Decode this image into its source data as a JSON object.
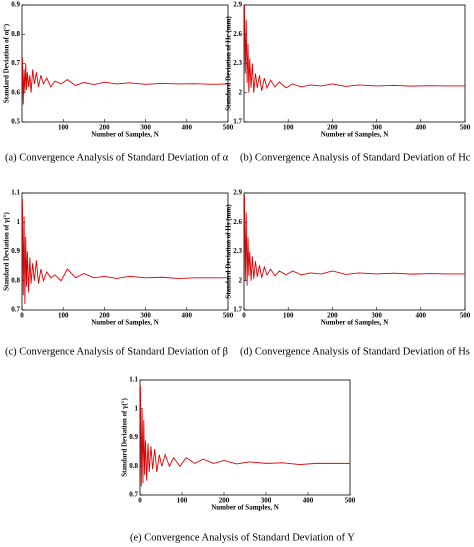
{
  "chart_data": [
    {
      "type": "line",
      "caption": "(a) Convergence Analysis of Standard Deviation of α",
      "xlabel": "Number of Samples, N",
      "ylabel": "Standard Deviation of α(°)",
      "xlim": [
        0,
        500
      ],
      "xticks": [
        100,
        200,
        300,
        400,
        500
      ],
      "ylim": [
        0.5,
        0.9
      ],
      "yticks": [
        0.5,
        0.6,
        0.7,
        0.8,
        0.9
      ],
      "x": [
        1,
        3,
        5,
        7,
        9,
        11,
        13,
        16,
        19,
        22,
        26,
        30,
        35,
        40,
        46,
        52,
        60,
        70,
        80,
        95,
        110,
        130,
        150,
        175,
        200,
        230,
        260,
        300,
        340,
        380,
        420,
        460,
        500
      ],
      "series": [
        {
          "name": "α",
          "color": "#e00000",
          "values": [
            0.72,
            0.56,
            0.68,
            0.6,
            0.7,
            0.61,
            0.67,
            0.62,
            0.66,
            0.6,
            0.68,
            0.63,
            0.67,
            0.62,
            0.66,
            0.63,
            0.65,
            0.62,
            0.64,
            0.63,
            0.645,
            0.625,
            0.635,
            0.628,
            0.636,
            0.63,
            0.634,
            0.629,
            0.632,
            0.63,
            0.631,
            0.629,
            0.63
          ]
        }
      ]
    },
    {
      "type": "line",
      "caption": "(b) Convergence Analysis of Standard Deviation of Hc",
      "xlabel": "Number of Samples, N",
      "ylabel": "Standard Deviation of Hc (mm)",
      "xlim": [
        0,
        500
      ],
      "xticks": [
        100,
        200,
        300,
        400,
        500
      ],
      "ylim": [
        1.7,
        2.9
      ],
      "yticks": [
        1.7,
        2.0,
        2.3,
        2.6,
        2.9
      ],
      "x": [
        1,
        3,
        5,
        7,
        9,
        11,
        13,
        16,
        19,
        22,
        26,
        30,
        35,
        40,
        46,
        52,
        60,
        70,
        80,
        95,
        110,
        130,
        150,
        175,
        200,
        230,
        260,
        300,
        340,
        380,
        420,
        460,
        500
      ],
      "series": [
        {
          "name": "Hc",
          "color": "#e00000",
          "values": [
            2.9,
            2.2,
            2.75,
            2.1,
            2.5,
            2.0,
            2.35,
            2.05,
            2.3,
            2.0,
            2.2,
            2.05,
            2.18,
            2.02,
            2.15,
            2.05,
            2.13,
            2.06,
            2.11,
            2.05,
            2.09,
            2.06,
            2.08,
            2.07,
            2.09,
            2.065,
            2.08,
            2.07,
            2.075,
            2.068,
            2.072,
            2.07,
            2.07
          ]
        }
      ]
    },
    {
      "type": "line",
      "caption": "(c) Convergence Analysis of Standard Deviation of β",
      "xlabel": "Number of Samples, N",
      "ylabel": "Standard Deviation of γ(°)",
      "xlim": [
        0,
        500
      ],
      "xticks": [
        0,
        100,
        200,
        300,
        400,
        500
      ],
      "ylim": [
        0.7,
        1.1
      ],
      "yticks": [
        0.7,
        0.8,
        0.9,
        1,
        1.1
      ],
      "x": [
        1,
        3,
        5,
        7,
        9,
        11,
        13,
        16,
        19,
        22,
        26,
        30,
        35,
        40,
        46,
        52,
        60,
        70,
        80,
        95,
        110,
        130,
        150,
        175,
        200,
        230,
        260,
        300,
        340,
        380,
        420,
        460,
        500
      ],
      "series": [
        {
          "name": "β",
          "color": "#e00000",
          "values": [
            1.08,
            0.75,
            1.02,
            0.72,
            0.95,
            0.78,
            0.9,
            0.76,
            0.88,
            0.79,
            0.86,
            0.8,
            0.87,
            0.79,
            0.84,
            0.8,
            0.83,
            0.81,
            0.82,
            0.8,
            0.84,
            0.81,
            0.825,
            0.81,
            0.815,
            0.808,
            0.815,
            0.81,
            0.812,
            0.808,
            0.81,
            0.81,
            0.81
          ]
        }
      ]
    },
    {
      "type": "line",
      "caption": "(d) Convergence Analysis of Standard Deviation of Hs",
      "xlabel": "Number of Samples, N",
      "ylabel": "Standard Deviation of Hs (mm)",
      "xlim": [
        0,
        500
      ],
      "xticks": [
        0,
        100,
        200,
        300,
        400,
        500
      ],
      "ylim": [
        1.7,
        2.9
      ],
      "yticks": [
        1.7,
        2.0,
        2.3,
        2.6,
        2.9
      ],
      "x": [
        1,
        3,
        5,
        7,
        9,
        11,
        13,
        16,
        19,
        22,
        26,
        30,
        35,
        40,
        46,
        52,
        60,
        70,
        80,
        95,
        110,
        130,
        150,
        175,
        200,
        230,
        260,
        300,
        340,
        380,
        420,
        460,
        500
      ],
      "series": [
        {
          "name": "Hs",
          "color": "#e00000",
          "values": [
            2.88,
            2.0,
            2.7,
            1.95,
            2.45,
            2.05,
            2.3,
            2.0,
            2.25,
            2.02,
            2.2,
            2.04,
            2.16,
            2.03,
            2.14,
            2.06,
            2.12,
            2.05,
            2.1,
            2.06,
            2.1,
            2.06,
            2.08,
            2.07,
            2.1,
            2.065,
            2.08,
            2.07,
            2.078,
            2.068,
            2.074,
            2.07,
            2.07
          ]
        }
      ]
    },
    {
      "type": "line",
      "caption": "(e) Convergence Analysis of Standard Deviation of Y",
      "xlabel": "Number of Samples, N",
      "ylabel": "Standard Deviation of γ(°)",
      "xlim": [
        0,
        500
      ],
      "xticks": [
        0,
        100,
        200,
        300,
        400,
        500
      ],
      "ylim": [
        0.7,
        1.1
      ],
      "yticks": [
        0.7,
        0.8,
        0.9,
        1,
        1.1
      ],
      "x": [
        1,
        3,
        5,
        7,
        9,
        11,
        13,
        16,
        19,
        22,
        26,
        30,
        35,
        40,
        46,
        52,
        60,
        70,
        80,
        95,
        110,
        130,
        150,
        175,
        200,
        230,
        260,
        300,
        340,
        380,
        420,
        460,
        500
      ],
      "series": [
        {
          "name": "Y",
          "color": "#e00000",
          "values": [
            1.08,
            0.73,
            1.0,
            0.74,
            0.96,
            0.77,
            0.89,
            0.75,
            0.88,
            0.78,
            0.87,
            0.79,
            0.86,
            0.78,
            0.84,
            0.8,
            0.84,
            0.8,
            0.83,
            0.8,
            0.83,
            0.81,
            0.825,
            0.81,
            0.82,
            0.808,
            0.815,
            0.81,
            0.812,
            0.806,
            0.81,
            0.81,
            0.81
          ]
        }
      ]
    }
  ]
}
